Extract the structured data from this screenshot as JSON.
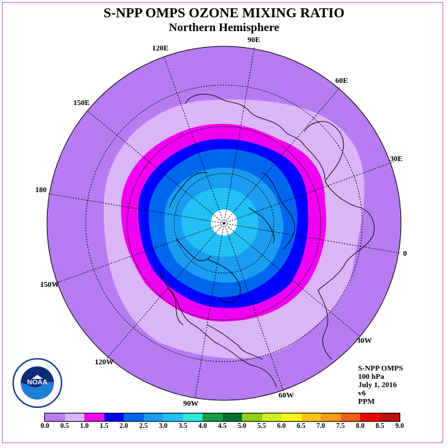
{
  "title": "S-NPP OMPS OZONE MIXING RATIO",
  "subtitle": "Northern Hemisphere",
  "longitude_labels": {
    "e90": "90E",
    "e60": "60E",
    "e30": "30E",
    "e0": "0",
    "w30": "30W",
    "w60": "60W",
    "w90": "90W",
    "w120": "120W",
    "w150": "150W",
    "e180": "180",
    "e150": "150E",
    "e120": "120E"
  },
  "info": {
    "instrument": "S-NPP OMPS",
    "level": "100 hPa",
    "date": "July 1, 2016",
    "version": "v6",
    "units": "PPM"
  },
  "logo_text": "NOAA",
  "colorbar": {
    "ticks": [
      "0.0",
      "0.5",
      "1.0",
      "1.5",
      "2.0",
      "2.5",
      "3.0",
      "3.5",
      "4.0",
      "4.5",
      "5.0",
      "5.5",
      "6.0",
      "6.5",
      "7.0",
      "7.5",
      "8.0",
      "8.5",
      "9.0"
    ],
    "colors": [
      "#b87cf2",
      "#dcb4f8",
      "#f000f0",
      "#0000ff",
      "#0066ee",
      "#1a9cf0",
      "#22c0f4",
      "#2ee8d8",
      "#11a044",
      "#066e2a",
      "#8ed018",
      "#ccee18",
      "#f8f814",
      "#f8c414",
      "#f89c14",
      "#f06010",
      "#f00000",
      "#ba1010"
    ]
  },
  "map_colors": {
    "bg": "#b87cf2",
    "c05": "#dcb4f8",
    "c10": "#f000f0",
    "c15": "#0000ff",
    "c20": "#0066ee",
    "c25": "#1a9cf0",
    "c30": "#22c0f4",
    "pole": "#ffffff"
  }
}
